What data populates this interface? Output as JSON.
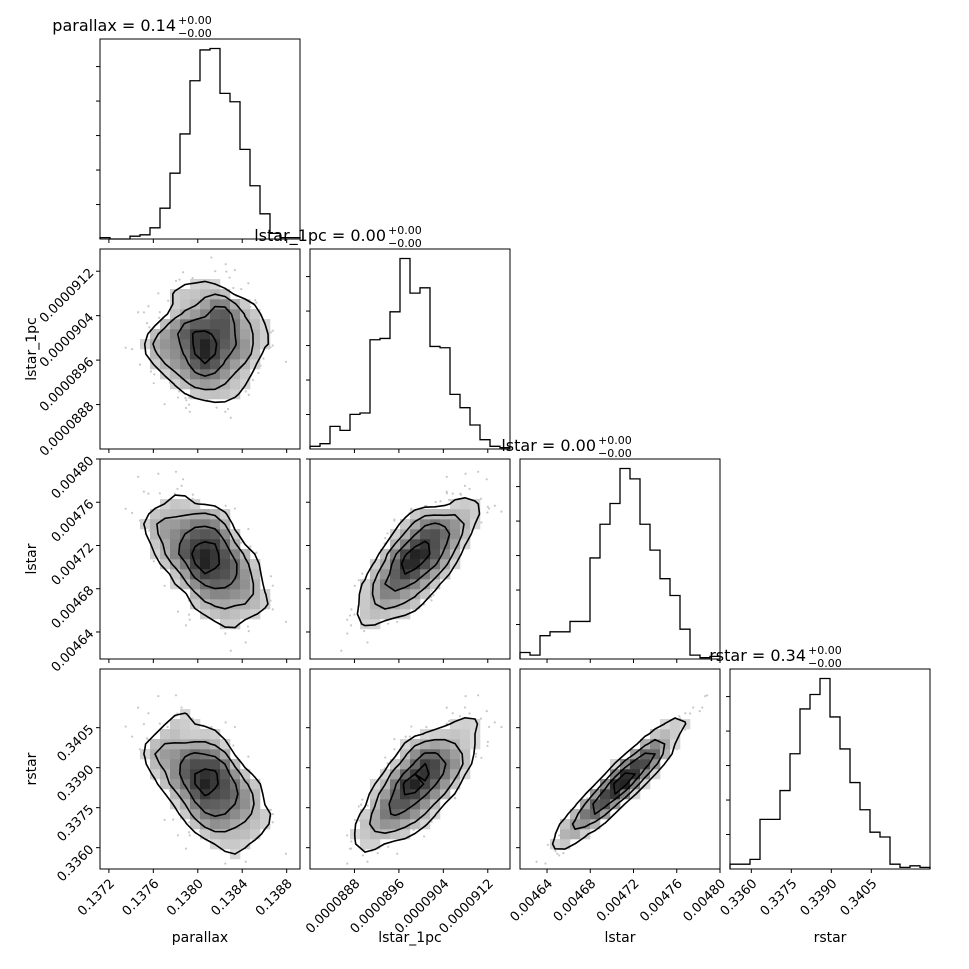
{
  "chart_data": {
    "type": "corner",
    "params": [
      "parallax",
      "lstar_1pc",
      "lstar",
      "rstar"
    ],
    "axis_labels": [
      "parallax",
      "lstar_1pc",
      "lstar",
      "rstar"
    ],
    "titles": [
      {
        "name": "parallax",
        "value": "0.14",
        "plus": "+0.00",
        "minus": "−0.00"
      },
      {
        "name": "lstar_1pc",
        "value": "0.00",
        "plus": "+0.00",
        "minus": "−0.00"
      },
      {
        "name": "lstar",
        "value": "0.00",
        "plus": "+0.00",
        "minus": "−0.00"
      },
      {
        "name": "rstar",
        "value": "0.34",
        "plus": "+0.00",
        "minus": "−0.00"
      }
    ],
    "ranges": [
      [
        0.13712,
        0.13892
      ],
      [
        8.8e-05,
        9.16e-05
      ],
      [
        0.004615,
        0.0048
      ],
      [
        0.3352,
        0.3427
      ]
    ],
    "ticks": [
      [
        0.1372,
        0.1376,
        0.138,
        0.1384,
        0.1388
      ],
      [
        8.88e-05,
        8.96e-05,
        9.04e-05,
        9.12e-05
      ],
      [
        0.00464,
        0.00468,
        0.00472,
        0.00476,
        0.0048
      ],
      [
        0.336,
        0.3375,
        0.339,
        0.3405
      ]
    ],
    "tick_labels": [
      [
        "0.1372",
        "0.1376",
        "0.1380",
        "0.1384",
        "0.1388"
      ],
      [
        "0.0000888",
        "0.0000896",
        "0.0000904",
        "0.0000912"
      ],
      [
        "0.00464",
        "0.00468",
        "0.00472",
        "0.00476",
        "0.00480"
      ],
      [
        "0.3360",
        "0.3375",
        "0.3390",
        "0.3405"
      ]
    ],
    "histograms": [
      {
        "param": "parallax",
        "counts": [
          1,
          0,
          0,
          2,
          3,
          8,
          22,
          47,
          75,
          113,
          135,
          136,
          104,
          98,
          64,
          38,
          18,
          4,
          1,
          1
        ]
      },
      {
        "param": "lstar_1pc",
        "counts": [
          2,
          4,
          17,
          14,
          26,
          27,
          82,
          83,
          103,
          143,
          117,
          121,
          77,
          76,
          41,
          31,
          18,
          7,
          2,
          1
        ]
      },
      {
        "param": "lstar",
        "counts": [
          5,
          3,
          18,
          21,
          21,
          29,
          29,
          78,
          104,
          120,
          147,
          139,
          104,
          84,
          62,
          49,
          23,
          3,
          1,
          2
        ]
      },
      {
        "param": "rstar",
        "counts": [
          3,
          3,
          6,
          31,
          31,
          49,
          72,
          100,
          109,
          119,
          95,
          75,
          54,
          37,
          23,
          20,
          3,
          1,
          2,
          1
        ]
      }
    ],
    "distribution": {
      "means": [
        0.1381,
        8.995e-05,
        0.004708,
        0.3384
      ],
      "stds": [
        0.00025,
        5.2e-07,
        3e-05,
        0.0012
      ],
      "correlations": [
        [
          1.0,
          0.0,
          -0.55,
          -0.55
        ],
        [
          0.0,
          1.0,
          0.75,
          0.75
        ],
        [
          -0.55,
          0.75,
          1.0,
          0.98
        ],
        [
          -0.55,
          0.75,
          0.98,
          1.0
        ]
      ]
    },
    "grid": false,
    "legend": "none"
  }
}
